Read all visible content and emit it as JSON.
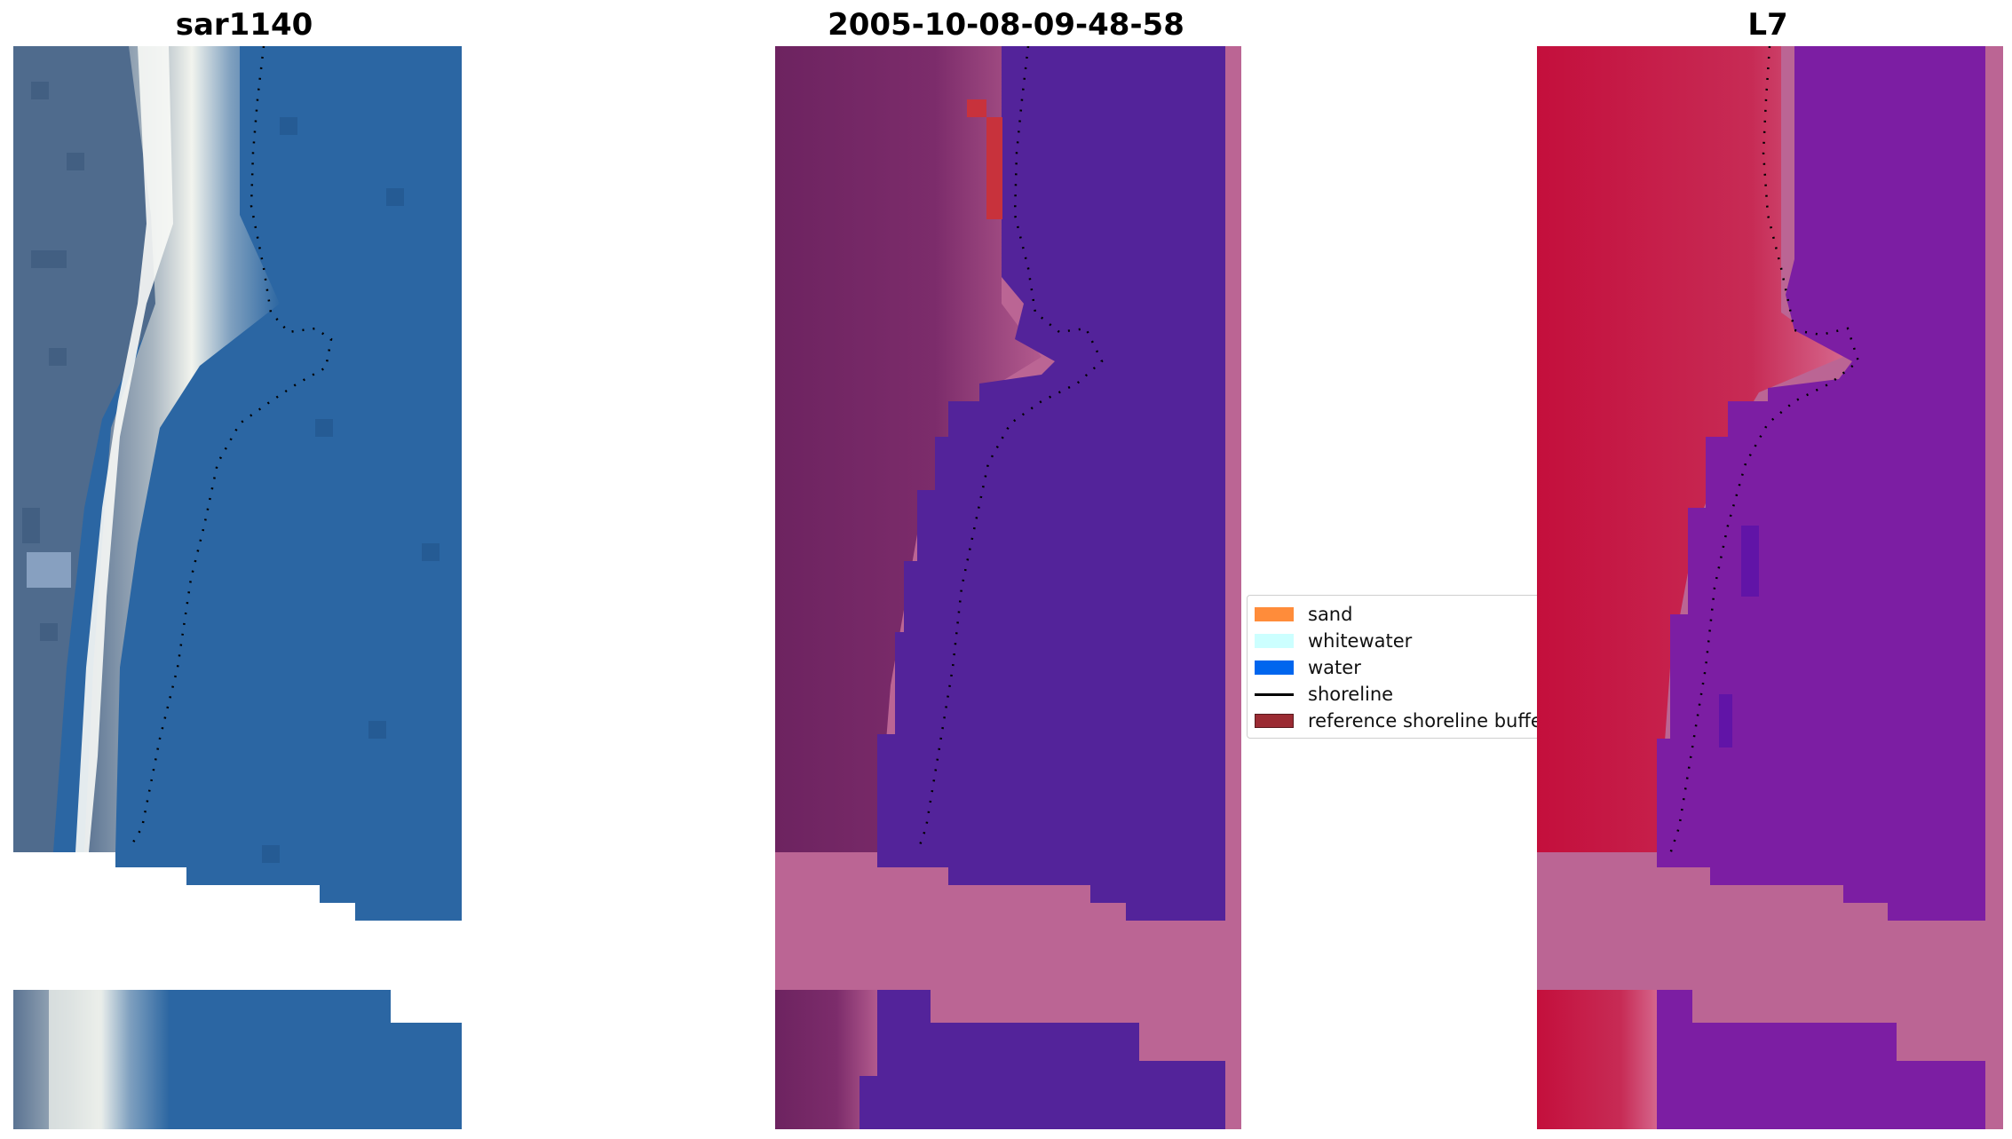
{
  "panels": [
    {
      "title": "sar1140"
    },
    {
      "title": "2005-10-08-09-48-58"
    },
    {
      "title": "L7"
    }
  ],
  "legend": {
    "items": [
      {
        "label": "sand",
        "color": "#ff8c3a",
        "kind": "patch"
      },
      {
        "label": "whitewater",
        "color": "#ccffff",
        "kind": "patch"
      },
      {
        "label": "water",
        "color": "#0066ee",
        "kind": "patch"
      },
      {
        "label": "shoreline",
        "color": "#000000",
        "kind": "line"
      },
      {
        "label": "reference shoreline buffer",
        "color": "#9b2b33",
        "kind": "patch"
      }
    ]
  },
  "colors": {
    "rgb_water": "#2b66a3",
    "rgb_beach": "#e6ece6",
    "classified_water": "#53239a",
    "classified_land": "#6e2560",
    "buffer_pink": "#bb6594",
    "l7_land": "#c11c48",
    "l7_water": "#7c1ea3"
  }
}
